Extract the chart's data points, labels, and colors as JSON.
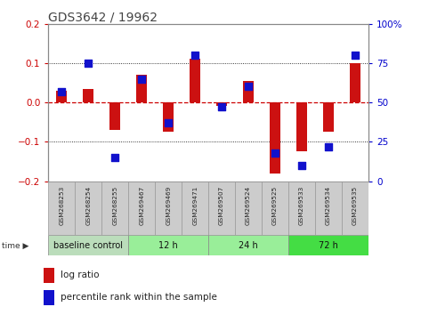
{
  "title": "GDS3642 / 19962",
  "samples": [
    "GSM268253",
    "GSM268254",
    "GSM268255",
    "GSM269467",
    "GSM269469",
    "GSM269471",
    "GSM269507",
    "GSM269524",
    "GSM269525",
    "GSM269533",
    "GSM269534",
    "GSM269535"
  ],
  "log_ratio": [
    0.03,
    0.035,
    -0.07,
    0.07,
    -0.075,
    0.11,
    -0.01,
    0.055,
    -0.18,
    -0.125,
    -0.075,
    0.1
  ],
  "percentile": [
    57,
    75,
    15,
    65,
    37,
    80,
    47,
    60,
    18,
    10,
    22,
    80
  ],
  "group_colors": [
    "#bbddbb",
    "#99ee99",
    "#99ee99",
    "#44dd44"
  ],
  "group_labels": [
    "baseline control",
    "12 h",
    "24 h",
    "72 h"
  ],
  "group_ranges": [
    [
      0,
      3
    ],
    [
      3,
      6
    ],
    [
      6,
      9
    ],
    [
      9,
      12
    ]
  ],
  "ylim_left": [
    -0.2,
    0.2
  ],
  "ylim_right": [
    0,
    100
  ],
  "yticks_left": [
    -0.2,
    -0.1,
    0.0,
    0.1,
    0.2
  ],
  "yticks_right": [
    0,
    25,
    50,
    75,
    100
  ],
  "bar_color": "#cc1111",
  "dot_color": "#1111cc",
  "bar_width": 0.4,
  "dot_size": 28,
  "grid_color": "#000000",
  "zero_line_color": "#cc0000",
  "title_color": "#444444",
  "background_plot": "#ffffff",
  "axis_color_left": "#cc0000",
  "axis_color_right": "#0000cc",
  "cell_color": "#cccccc",
  "cell_edge_color": "#999999",
  "legend_bar_color": "#cc1111",
  "legend_dot_color": "#1111cc"
}
